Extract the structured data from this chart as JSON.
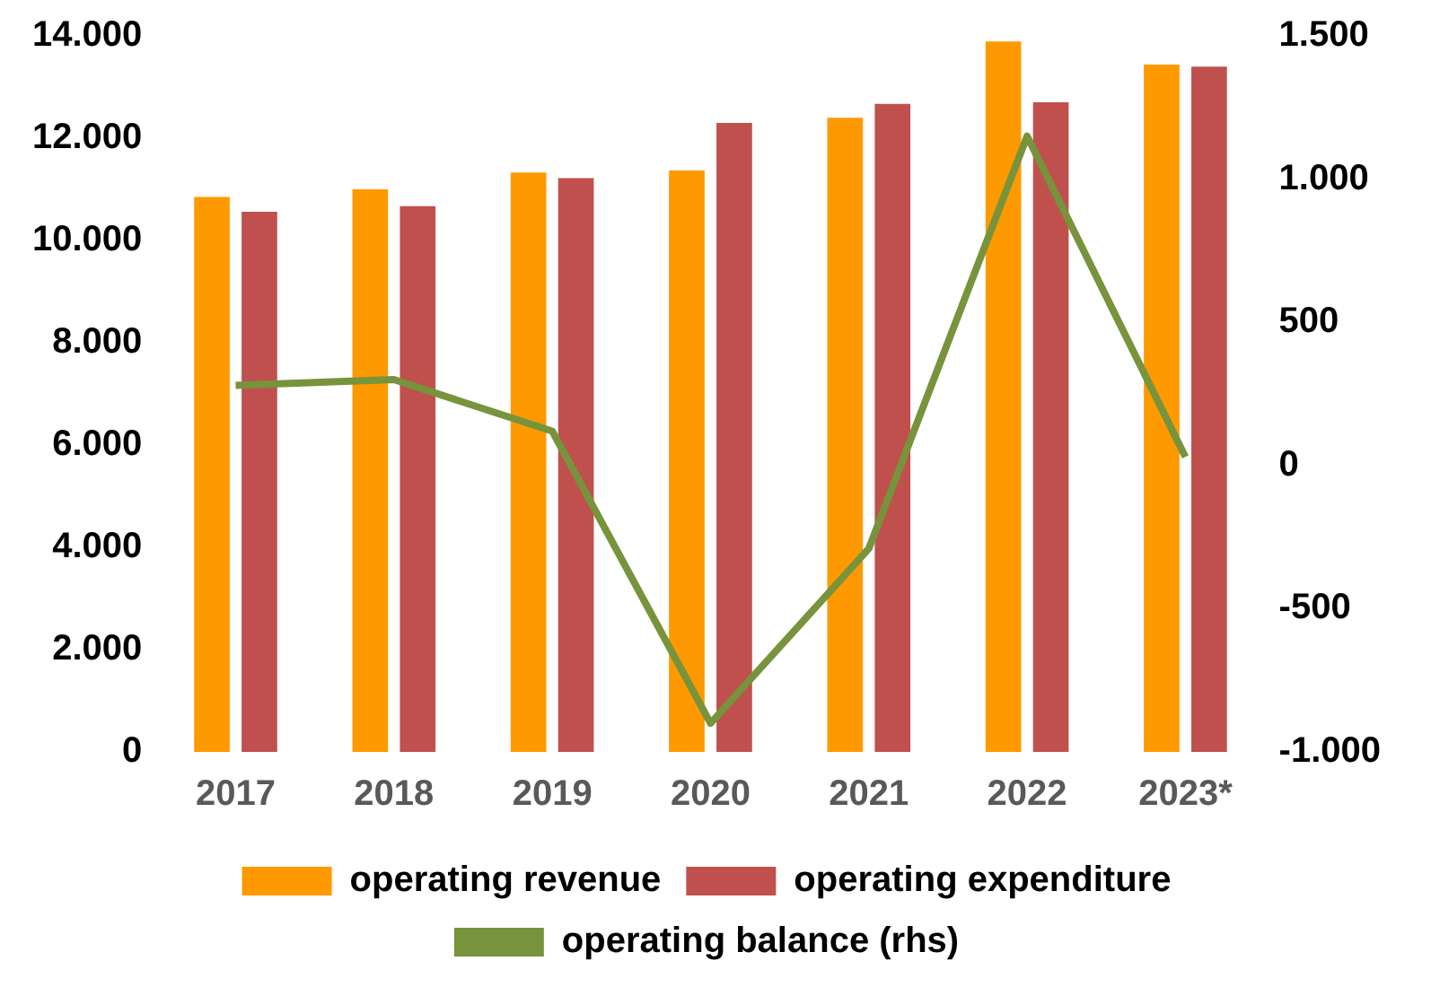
{
  "chart_data": {
    "type": "bar",
    "categories": [
      "2017",
      "2018",
      "2019",
      "2020",
      "2021",
      "2022",
      "2023*"
    ],
    "series": [
      {
        "name": "operating revenue",
        "color": "#ff9900",
        "values": [
          10850,
          11000,
          11330,
          11370,
          12400,
          13890,
          13440
        ]
      },
      {
        "name": "operating expenditure",
        "color": "#c0504d",
        "values": [
          10560,
          10670,
          11220,
          12300,
          12670,
          12700,
          13400
        ]
      },
      {
        "name": "operating balance (rhs)",
        "type": "line",
        "axis": "y2",
        "color": "#77933c",
        "marker": "none",
        "values": [
          280,
          300,
          120,
          -900,
          -290,
          1150,
          30
        ]
      }
    ],
    "ylim": [
      0,
      14000
    ],
    "yticks": [
      0,
      {
        "value": 2000,
        "label": "2.000"
      },
      {
        "value": 4000,
        "label": "4.000"
      },
      {
        "value": 6000,
        "label": "6.000"
      },
      {
        "value": 8000,
        "label": "8.000"
      },
      {
        "value": 10000,
        "label": "10.000"
      },
      {
        "value": 12000,
        "label": "12.000"
      },
      {
        "value": 14000,
        "label": "14.000"
      }
    ],
    "y2lim": [
      -1000,
      1500
    ],
    "y2ticks": [
      {
        "value": -1000,
        "label": "-1.000"
      },
      -500,
      0,
      500,
      {
        "value": 1000,
        "label": "1.000"
      },
      {
        "value": 1500,
        "label": "1.500"
      }
    ],
    "grid": false,
    "legend": "bottom"
  }
}
